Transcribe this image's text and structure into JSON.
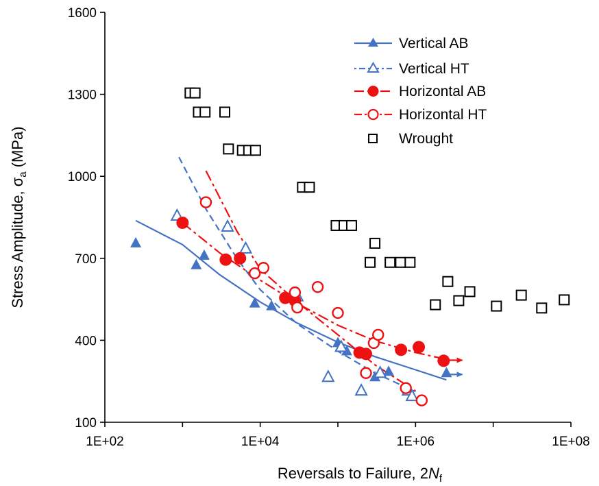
{
  "chart_data": {
    "type": "scatter",
    "xscale": "log",
    "xlim": [
      100,
      100000000
    ],
    "ylim": [
      100,
      1600
    ],
    "xticks": [
      "1E+02",
      "1E+04",
      "1E+06",
      "1E+08"
    ],
    "yticks": [
      "100",
      "400",
      "700",
      "1000",
      "1300",
      "1600"
    ],
    "xlabel": {
      "main": "Reversals to Failure, 2",
      "italic": "N",
      "sub": "f"
    },
    "ylabel": {
      "main": "Stress Amplitude, σ",
      "sub": "a",
      "unit": " (MPa)"
    },
    "grid": false,
    "legend_position": "top-right",
    "colors": {
      "blue": "#4472c4",
      "red": "#ee1111",
      "black": "#000000"
    },
    "series": [
      {
        "name": "Vertical AB",
        "marker": "triangle-filled",
        "line": "solid",
        "color": "#4472c4",
        "points": [
          [
            250,
            755
          ],
          [
            1500,
            675
          ],
          [
            1900,
            710
          ],
          [
            8500,
            535
          ],
          [
            14000,
            525
          ],
          [
            100000,
            390
          ],
          [
            130000,
            360
          ],
          [
            300000,
            265
          ],
          [
            450000,
            285
          ],
          [
            2500000,
            280
          ]
        ],
        "fit": [
          [
            250,
            838
          ],
          [
            1000,
            750
          ],
          [
            3000,
            640
          ],
          [
            10000,
            540
          ],
          [
            30000,
            463
          ],
          [
            100000,
            393
          ],
          [
            300000,
            340
          ],
          [
            1000000,
            292
          ],
          [
            2500000,
            255
          ]
        ],
        "runout": [
          [
            2500000,
            275
          ],
          [
            4000000,
            275
          ]
        ]
      },
      {
        "name": "Vertical HT",
        "marker": "triangle-open",
        "line": "dashed",
        "color": "#4472c4",
        "points": [
          [
            850,
            855
          ],
          [
            3800,
            815
          ],
          [
            6500,
            735
          ],
          [
            30000,
            560
          ],
          [
            75000,
            265
          ],
          [
            110000,
            375
          ],
          [
            200000,
            215
          ],
          [
            350000,
            280
          ],
          [
            800000,
            215
          ],
          [
            900000,
            195
          ]
        ],
        "fit": [
          [
            900,
            1070
          ],
          [
            2000,
            880
          ],
          [
            5000,
            700
          ],
          [
            10000,
            585
          ],
          [
            30000,
            460
          ],
          [
            100000,
            360
          ],
          [
            300000,
            280
          ],
          [
            1000000,
            212
          ]
        ]
      },
      {
        "name": "Horizontal AB",
        "marker": "circle-filled",
        "line": "dashdot",
        "color": "#ee1111",
        "points": [
          [
            1000,
            830
          ],
          [
            3600,
            695
          ],
          [
            5500,
            700
          ],
          [
            21000,
            555
          ],
          [
            28000,
            545
          ],
          [
            190000,
            355
          ],
          [
            230000,
            350
          ],
          [
            650000,
            365
          ],
          [
            1100000,
            375
          ],
          [
            2300000,
            325
          ]
        ],
        "fit": [
          [
            1000,
            830
          ],
          [
            3000,
            720
          ],
          [
            10000,
            620
          ],
          [
            30000,
            535
          ],
          [
            100000,
            455
          ],
          [
            300000,
            398
          ],
          [
            1000000,
            355
          ],
          [
            2500000,
            330
          ]
        ],
        "runout": [
          [
            2400000,
            327
          ],
          [
            4000000,
            327
          ]
        ]
      },
      {
        "name": "Horizontal HT",
        "marker": "circle-open",
        "line": "dashdot",
        "color": "#ee1111",
        "points": [
          [
            2000,
            905
          ],
          [
            8500,
            645
          ],
          [
            11000,
            665
          ],
          [
            28000,
            575
          ],
          [
            30000,
            520
          ],
          [
            55000,
            595
          ],
          [
            100000,
            500
          ],
          [
            230000,
            280
          ],
          [
            290000,
            390
          ],
          [
            330000,
            420
          ],
          [
            750000,
            225
          ],
          [
            1200000,
            180
          ]
        ],
        "fit": [
          [
            2000,
            1020
          ],
          [
            5000,
            800
          ],
          [
            10000,
            660
          ],
          [
            30000,
            540
          ],
          [
            100000,
            420
          ],
          [
            300000,
            310
          ],
          [
            1000000,
            215
          ]
        ]
      },
      {
        "name": "Wrought",
        "marker": "square-open",
        "line": "none",
        "color": "#000000",
        "points": [
          [
            1250,
            1305
          ],
          [
            1450,
            1305
          ],
          [
            1600,
            1235
          ],
          [
            1950,
            1235
          ],
          [
            3500,
            1235
          ],
          [
            3900,
            1100
          ],
          [
            5900,
            1095
          ],
          [
            7100,
            1095
          ],
          [
            8700,
            1095
          ],
          [
            35000,
            960
          ],
          [
            43000,
            960
          ],
          [
            95000,
            820
          ],
          [
            120000,
            820
          ],
          [
            150000,
            820
          ],
          [
            260000,
            685
          ],
          [
            300000,
            755
          ],
          [
            470000,
            685
          ],
          [
            640000,
            685
          ],
          [
            850000,
            685
          ],
          [
            1800000,
            530
          ],
          [
            2600000,
            615
          ],
          [
            3600000,
            545
          ],
          [
            5000000,
            578
          ],
          [
            11000000,
            525
          ],
          [
            23000000,
            565
          ],
          [
            42000000,
            518
          ],
          [
            82000000,
            548
          ]
        ]
      }
    ]
  }
}
